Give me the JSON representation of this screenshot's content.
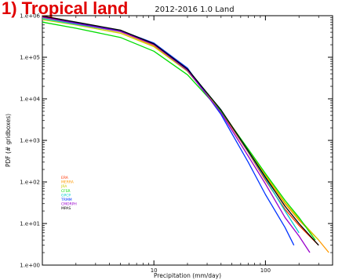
{
  "region_title": "1) Tropical land",
  "colors": {
    "region_title": "#e00000",
    "axes": "#000000",
    "background": "#ffffff"
  },
  "chart_data": {
    "type": "line",
    "title": "2012-2016  1.0  Land",
    "xlabel": "Precipitation (mm/day)",
    "ylabel": "PDF (# gridboxes)",
    "xscale": "log",
    "yscale": "log",
    "xlim": [
      1,
      400
    ],
    "ylim": [
      1,
      1000000
    ],
    "x_ticks": [
      {
        "value": 10,
        "label": "10"
      },
      {
        "value": 100,
        "label": "100"
      }
    ],
    "y_ticks": [
      {
        "value": 1,
        "label": "1.e+00"
      },
      {
        "value": 10,
        "label": "1.e+01"
      },
      {
        "value": 100,
        "label": "1.e+02"
      },
      {
        "value": 1000,
        "label": "1.e+03"
      },
      {
        "value": 10000,
        "label": "1.e+04"
      },
      {
        "value": 100000,
        "label": "1.e+05"
      },
      {
        "value": 1000000,
        "label": "1.e+06"
      }
    ],
    "legend_position": "center-left",
    "series": [
      {
        "name": "ERA",
        "color": "#ff3300",
        "x": [
          1,
          2,
          5,
          10,
          20,
          40,
          70,
          100,
          150,
          200,
          300
        ],
        "y": [
          1000000,
          690000,
          430000,
          200000,
          50000,
          5000,
          520,
          110,
          22,
          9,
          3
        ]
      },
      {
        "name": "MERRA",
        "color": "#ff9900",
        "x": [
          1,
          2,
          5,
          10,
          20,
          40,
          70,
          100,
          150,
          200,
          300,
          370
        ],
        "y": [
          900000,
          640000,
          410000,
          190000,
          47000,
          5200,
          580,
          140,
          30,
          12,
          4,
          2
        ]
      },
      {
        "name": "JRA",
        "color": "#cccc00",
        "x": [
          1,
          2,
          5,
          10,
          20,
          40,
          70,
          100,
          150,
          200,
          300
        ],
        "y": [
          800000,
          600000,
          380000,
          180000,
          46000,
          5300,
          600,
          150,
          32,
          13,
          4
        ]
      },
      {
        "name": "CFSR",
        "color": "#00dd00",
        "x": [
          1,
          2,
          5,
          10,
          20,
          40,
          70,
          100,
          150,
          200,
          280
        ],
        "y": [
          700000,
          500000,
          300000,
          140000,
          38000,
          5000,
          620,
          160,
          36,
          14,
          4
        ]
      },
      {
        "name": "GPCP",
        "color": "#00cccc",
        "x": [
          1,
          2,
          5,
          10,
          20,
          40,
          70,
          100,
          150,
          200
        ],
        "y": [
          850000,
          620000,
          420000,
          210000,
          52000,
          5400,
          540,
          120,
          20,
          6
        ]
      },
      {
        "name": "TRMM",
        "color": "#0033ff",
        "x": [
          1,
          2,
          5,
          10,
          20,
          40,
          70,
          100,
          150,
          180
        ],
        "y": [
          950000,
          670000,
          440000,
          220000,
          55000,
          4200,
          300,
          50,
          8,
          3
        ]
      },
      {
        "name": "CMORPH",
        "color": "#9900cc",
        "x": [
          1,
          2,
          5,
          10,
          20,
          40,
          70,
          100,
          150,
          200,
          250
        ],
        "y": [
          930000,
          650000,
          420000,
          200000,
          48000,
          4600,
          420,
          90,
          14,
          5,
          2
        ]
      },
      {
        "name": "MPAS",
        "color": "#000000",
        "x": [
          1,
          2,
          5,
          10,
          20,
          40,
          70,
          100,
          150,
          200,
          300
        ],
        "y": [
          980000,
          700000,
          450000,
          210000,
          52000,
          5400,
          560,
          130,
          26,
          10,
          3
        ]
      }
    ]
  }
}
